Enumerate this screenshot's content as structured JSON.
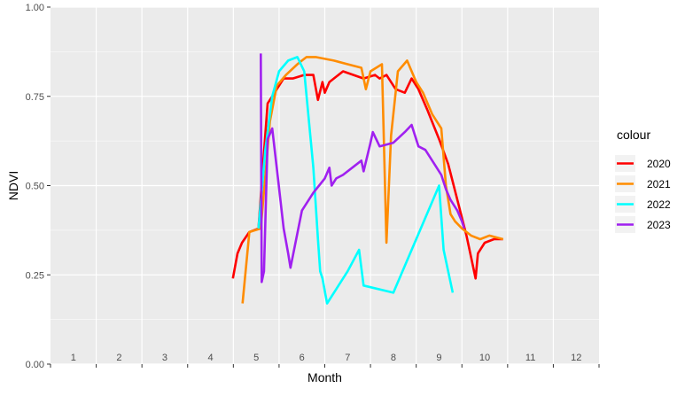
{
  "chart_data": {
    "type": "line",
    "xlabel": "Month",
    "ylabel": "NDVI",
    "xlim": [
      0,
      12
    ],
    "ylim": [
      0,
      1
    ],
    "month_labels": [
      "1",
      "2",
      "3",
      "4",
      "5",
      "6",
      "7",
      "8",
      "9",
      "10",
      "11",
      "12"
    ],
    "y_ticks": [
      0,
      0.25,
      0.5,
      0.75,
      1
    ],
    "y_tick_labels": [
      "0.00",
      "0.25",
      "0.50",
      "0.75",
      "1.00"
    ],
    "grid": true,
    "legend": {
      "title": "colour",
      "placement": "right"
    },
    "series": [
      {
        "name": "2020",
        "color": "#ff0000",
        "points": [
          [
            3.99,
            0.24
          ],
          [
            4.09,
            0.31
          ],
          [
            4.19,
            0.34
          ],
          [
            4.35,
            0.37
          ],
          [
            4.55,
            0.38
          ],
          [
            4.65,
            0.56
          ],
          [
            4.75,
            0.73
          ],
          [
            4.9,
            0.76
          ],
          [
            5.1,
            0.8
          ],
          [
            5.3,
            0.8
          ],
          [
            5.55,
            0.81
          ],
          [
            5.75,
            0.81
          ],
          [
            5.85,
            0.74
          ],
          [
            5.95,
            0.79
          ],
          [
            6.0,
            0.76
          ],
          [
            6.1,
            0.79
          ],
          [
            6.4,
            0.82
          ],
          [
            6.85,
            0.8
          ],
          [
            7.1,
            0.81
          ],
          [
            7.2,
            0.8
          ],
          [
            7.35,
            0.81
          ],
          [
            7.55,
            0.77
          ],
          [
            7.75,
            0.76
          ],
          [
            7.9,
            0.8
          ],
          [
            8.05,
            0.77
          ],
          [
            8.25,
            0.71
          ],
          [
            8.5,
            0.63
          ],
          [
            8.7,
            0.56
          ],
          [
            8.9,
            0.46
          ],
          [
            9.1,
            0.36
          ],
          [
            9.3,
            0.24
          ],
          [
            9.35,
            0.31
          ],
          [
            9.5,
            0.34
          ],
          [
            9.7,
            0.35
          ],
          [
            9.9,
            0.35
          ]
        ]
      },
      {
        "name": "2021",
        "color": "#ff8c00",
        "points": [
          [
            4.2,
            0.17
          ],
          [
            4.35,
            0.37
          ],
          [
            4.6,
            0.38
          ],
          [
            4.8,
            0.68
          ],
          [
            4.95,
            0.78
          ],
          [
            5.15,
            0.81
          ],
          [
            5.4,
            0.84
          ],
          [
            5.5,
            0.85
          ],
          [
            5.6,
            0.86
          ],
          [
            5.8,
            0.86
          ],
          [
            6.2,
            0.85
          ],
          [
            6.5,
            0.84
          ],
          [
            6.8,
            0.83
          ],
          [
            6.9,
            0.77
          ],
          [
            7.0,
            0.82
          ],
          [
            7.25,
            0.84
          ],
          [
            7.35,
            0.34
          ],
          [
            7.45,
            0.64
          ],
          [
            7.6,
            0.82
          ],
          [
            7.8,
            0.85
          ],
          [
            8.0,
            0.79
          ],
          [
            8.15,
            0.76
          ],
          [
            8.35,
            0.7
          ],
          [
            8.55,
            0.66
          ],
          [
            8.65,
            0.5
          ],
          [
            8.75,
            0.42
          ],
          [
            8.85,
            0.4
          ],
          [
            9.0,
            0.38
          ],
          [
            9.2,
            0.36
          ],
          [
            9.4,
            0.35
          ],
          [
            9.6,
            0.36
          ],
          [
            9.9,
            0.35
          ]
        ]
      },
      {
        "name": "2022",
        "color": "#00ffff",
        "points": [
          [
            4.55,
            0.38
          ],
          [
            4.7,
            0.6
          ],
          [
            4.85,
            0.75
          ],
          [
            5.0,
            0.82
          ],
          [
            5.2,
            0.85
          ],
          [
            5.4,
            0.86
          ],
          [
            5.55,
            0.82
          ],
          [
            5.75,
            0.55
          ],
          [
            5.85,
            0.35
          ],
          [
            5.9,
            0.26
          ],
          [
            5.95,
            0.24
          ],
          [
            6.05,
            0.17
          ],
          [
            6.25,
            0.21
          ],
          [
            6.5,
            0.26
          ],
          [
            6.75,
            0.32
          ],
          [
            6.85,
            0.22
          ],
          [
            7.5,
            0.2
          ],
          [
            8.5,
            0.5
          ],
          [
            8.6,
            0.32
          ],
          [
            8.8,
            0.2
          ]
        ]
      },
      {
        "name": "2023",
        "color": "#a020f0",
        "points": [
          [
            4.6,
            0.87
          ],
          [
            4.62,
            0.23
          ],
          [
            4.67,
            0.26
          ],
          [
            4.75,
            0.63
          ],
          [
            4.85,
            0.66
          ],
          [
            4.95,
            0.55
          ],
          [
            5.1,
            0.38
          ],
          [
            5.2,
            0.31
          ],
          [
            5.25,
            0.27
          ],
          [
            5.5,
            0.43
          ],
          [
            5.75,
            0.48
          ],
          [
            6.0,
            0.52
          ],
          [
            6.1,
            0.55
          ],
          [
            6.15,
            0.5
          ],
          [
            6.25,
            0.52
          ],
          [
            6.4,
            0.53
          ],
          [
            6.8,
            0.57
          ],
          [
            6.85,
            0.54
          ],
          [
            7.0,
            0.62
          ],
          [
            7.05,
            0.65
          ],
          [
            7.2,
            0.61
          ],
          [
            7.5,
            0.62
          ],
          [
            7.75,
            0.65
          ],
          [
            7.9,
            0.67
          ],
          [
            8.05,
            0.61
          ],
          [
            8.2,
            0.6
          ],
          [
            8.4,
            0.56
          ],
          [
            8.55,
            0.53
          ],
          [
            8.65,
            0.49
          ],
          [
            8.75,
            0.46
          ],
          [
            8.9,
            0.43
          ],
          [
            9.0,
            0.4
          ],
          [
            9.05,
            0.38
          ]
        ]
      }
    ]
  }
}
